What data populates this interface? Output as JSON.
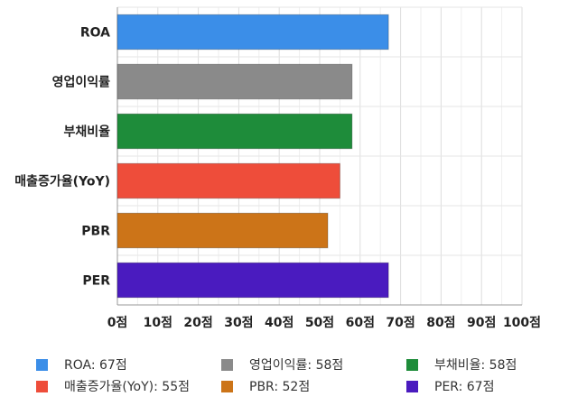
{
  "chart_data": {
    "type": "bar",
    "orientation": "horizontal",
    "categories": [
      "ROA",
      "영업이익률",
      "부채비율",
      "매출증가율(YoY)",
      "PBR",
      "PER"
    ],
    "values": [
      67,
      58,
      58,
      55,
      52,
      67
    ],
    "colors": [
      "#3b8ee8",
      "#8a8a8a",
      "#1e8c3a",
      "#ee4d3a",
      "#cc7418",
      "#4a1bbf"
    ],
    "xlim": [
      0,
      100
    ],
    "x_ticks": [
      0,
      10,
      20,
      30,
      40,
      50,
      60,
      70,
      80,
      90,
      100
    ],
    "tick_unit": "점",
    "grid": true,
    "legend_position": "bottom",
    "legend": [
      {
        "label": "ROA: 67점",
        "color": "#3b8ee8"
      },
      {
        "label": "영업이익률: 58점",
        "color": "#8a8a8a"
      },
      {
        "label": "부채비율: 58점",
        "color": "#1e8c3a"
      },
      {
        "label": "매출증가율(YoY): 55점",
        "color": "#ee4d3a"
      },
      {
        "label": "PBR: 52점",
        "color": "#cc7418"
      },
      {
        "label": "PER: 67점",
        "color": "#4a1bbf"
      }
    ]
  }
}
